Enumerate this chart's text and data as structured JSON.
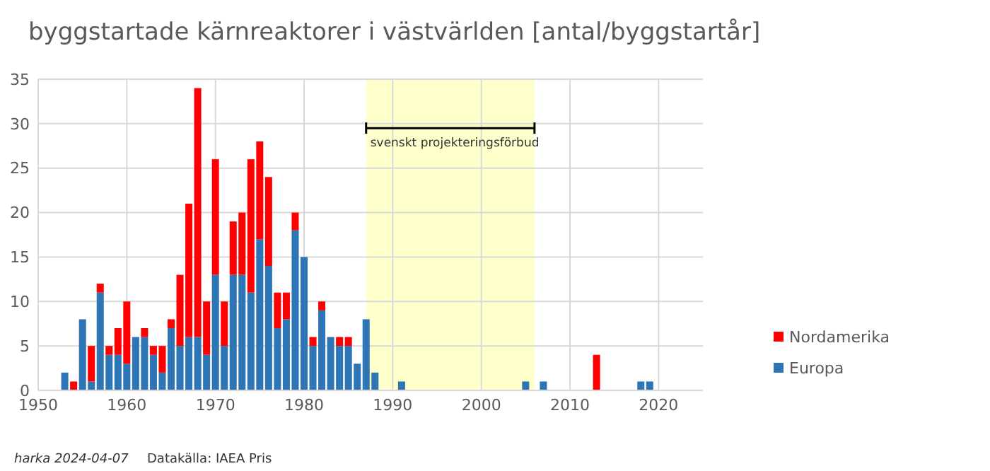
{
  "chart_data": {
    "type": "bar",
    "title": "byggstartade kärnreaktorer i västvärlden [antal/byggstartår]",
    "stacked": true,
    "x": [
      1953,
      1954,
      1955,
      1956,
      1957,
      1958,
      1959,
      1960,
      1961,
      1962,
      1963,
      1964,
      1965,
      1966,
      1967,
      1968,
      1969,
      1970,
      1971,
      1972,
      1973,
      1974,
      1975,
      1976,
      1977,
      1978,
      1979,
      1980,
      1981,
      1982,
      1983,
      1984,
      1985,
      1986,
      1987,
      1988,
      1991,
      2005,
      2007,
      2013,
      2018,
      2019
    ],
    "series": [
      {
        "name": "Europa",
        "color": "#2e75b6",
        "values": [
          2,
          0,
          8,
          1,
          11,
          4,
          4,
          3,
          6,
          6,
          4,
          2,
          7,
          5,
          6,
          6,
          4,
          13,
          5,
          13,
          13,
          11,
          17,
          14,
          7,
          8,
          18,
          15,
          5,
          9,
          6,
          5,
          5,
          3,
          8,
          2,
          1,
          1,
          1,
          0,
          1,
          1
        ]
      },
      {
        "name": "Nordamerika",
        "color": "#ff0000",
        "values": [
          0,
          1,
          0,
          4,
          1,
          1,
          3,
          7,
          0,
          1,
          1,
          3,
          1,
          8,
          15,
          28,
          6,
          13,
          5,
          6,
          7,
          15,
          11,
          10,
          4,
          3,
          2,
          0,
          1,
          1,
          0,
          1,
          1,
          0,
          0,
          0,
          0,
          0,
          0,
          4,
          0,
          0
        ]
      }
    ],
    "xlim": [
      1950,
      2025
    ],
    "xticks": [
      1950,
      1960,
      1970,
      1980,
      1990,
      2000,
      2010,
      2020
    ],
    "ylim": [
      0,
      35
    ],
    "yticks": [
      0,
      5,
      10,
      15,
      20,
      25,
      30,
      35
    ],
    "grid": true,
    "legend": "right",
    "bands": [
      {
        "axis": "x",
        "from": 1987,
        "to": 2006,
        "label": "svenskt projekteringsförbud",
        "color": "#ffffcc"
      }
    ],
    "annotations": [
      "harka 2024-04-07",
      "Datakälla: IAEA Pris"
    ]
  }
}
